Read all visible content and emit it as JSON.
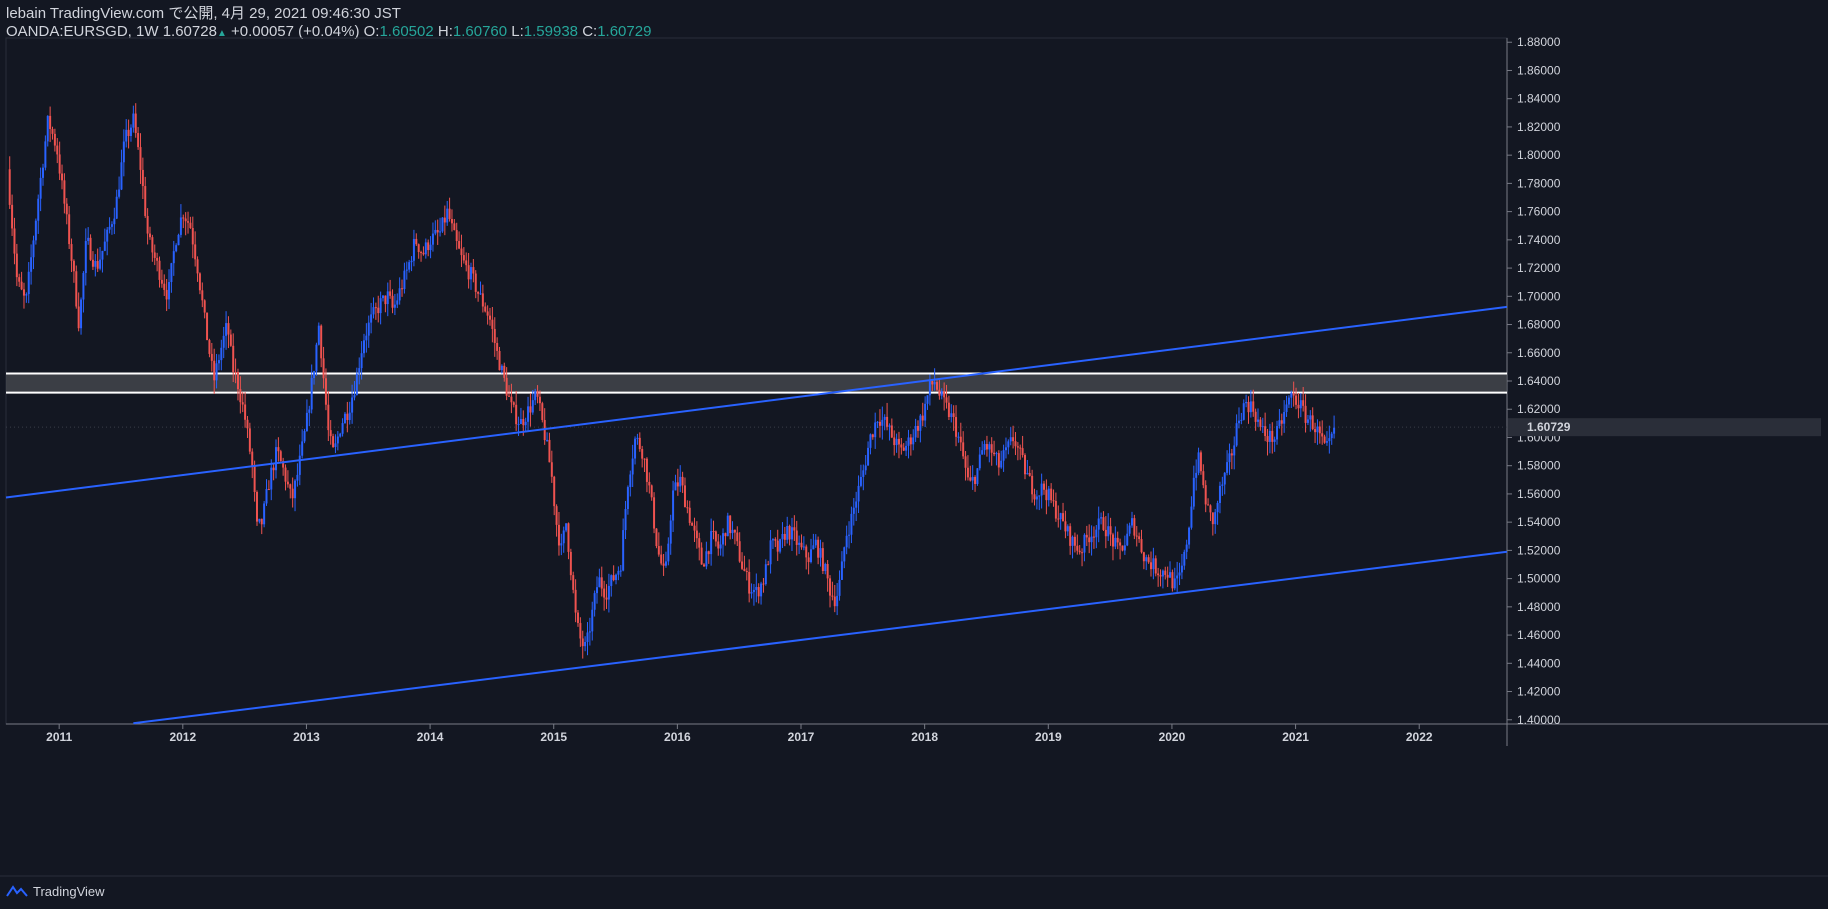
{
  "header": {
    "publisher": "lebain TradingView.com で公開, 4月 29, 2021 09:46:30 JST",
    "symbol": "OANDA:EURSGD, 1W",
    "last": "1.60728",
    "change": "+0.00057 (+0.04%)",
    "o_label": "O:",
    "o_value": "1.60502",
    "h_label": "H:",
    "h_value": "1.60760",
    "l_label": "L:",
    "l_value": "1.59938",
    "c_label": "C:",
    "c_value": "1.60729"
  },
  "footer": {
    "brand": "TradingView"
  },
  "colors": {
    "background": "#131722",
    "up": "#2962ff",
    "down": "#ef5350",
    "trendline": "#2962ff",
    "zone_fill": "#4a4c52",
    "zone_border": "#ffffff",
    "text": "#d1d4dc",
    "ohlc_value": "#26a69a"
  },
  "chart_data": {
    "type": "candlestick",
    "symbol": "OANDA:EURSGD",
    "interval": "1W",
    "x_range": [
      2010.57,
      2022.71
    ],
    "y_range": [
      1.397,
      1.883
    ],
    "y_ticks": [
      "1.40000",
      "1.42000",
      "1.44000",
      "1.46000",
      "1.48000",
      "1.50000",
      "1.52000",
      "1.54000",
      "1.56000",
      "1.58000",
      "1.60000",
      "1.62000",
      "1.64000",
      "1.66000",
      "1.68000",
      "1.70000",
      "1.72000",
      "1.74000",
      "1.76000",
      "1.78000",
      "1.80000",
      "1.82000",
      "1.84000",
      "1.86000",
      "1.88000"
    ],
    "x_ticks": [
      "2011",
      "2012",
      "2013",
      "2014",
      "2015",
      "2016",
      "2017",
      "2018",
      "2019",
      "2020",
      "2021",
      "2022"
    ],
    "last_price_label": "1.60729",
    "last_price": 1.60729,
    "price_path": [
      [
        2010.6,
        1.79
      ],
      [
        2010.68,
        1.71
      ],
      [
        2010.75,
        1.695
      ],
      [
        2010.85,
        1.77
      ],
      [
        2010.93,
        1.825
      ],
      [
        2011.0,
        1.805
      ],
      [
        2011.07,
        1.76
      ],
      [
        2011.13,
        1.72
      ],
      [
        2011.18,
        1.68
      ],
      [
        2011.24,
        1.74
      ],
      [
        2011.32,
        1.72
      ],
      [
        2011.4,
        1.74
      ],
      [
        2011.48,
        1.765
      ],
      [
        2011.55,
        1.81
      ],
      [
        2011.62,
        1.825
      ],
      [
        2011.68,
        1.79
      ],
      [
        2011.74,
        1.74
      ],
      [
        2011.82,
        1.72
      ],
      [
        2011.9,
        1.7
      ],
      [
        2011.96,
        1.74
      ],
      [
        2012.02,
        1.76
      ],
      [
        2012.08,
        1.75
      ],
      [
        2012.14,
        1.72
      ],
      [
        2012.2,
        1.68
      ],
      [
        2012.27,
        1.64
      ],
      [
        2012.32,
        1.66
      ],
      [
        2012.38,
        1.68
      ],
      [
        2012.42,
        1.65
      ],
      [
        2012.46,
        1.64
      ],
      [
        2012.52,
        1.615
      ],
      [
        2012.58,
        1.58
      ],
      [
        2012.62,
        1.535
      ],
      [
        2012.66,
        1.54
      ],
      [
        2012.72,
        1.57
      ],
      [
        2012.78,
        1.59
      ],
      [
        2012.84,
        1.575
      ],
      [
        2012.9,
        1.555
      ],
      [
        2012.95,
        1.575
      ],
      [
        2013.02,
        1.61
      ],
      [
        2013.08,
        1.65
      ],
      [
        2013.12,
        1.68
      ],
      [
        2013.16,
        1.64
      ],
      [
        2013.2,
        1.6
      ],
      [
        2013.24,
        1.588
      ],
      [
        2013.3,
        1.61
      ],
      [
        2013.36,
        1.62
      ],
      [
        2013.42,
        1.64
      ],
      [
        2013.48,
        1.67
      ],
      [
        2013.55,
        1.685
      ],
      [
        2013.62,
        1.695
      ],
      [
        2013.68,
        1.7
      ],
      [
        2013.72,
        1.69
      ],
      [
        2013.78,
        1.705
      ],
      [
        2013.84,
        1.72
      ],
      [
        2013.9,
        1.74
      ],
      [
        2013.96,
        1.73
      ],
      [
        2014.02,
        1.74
      ],
      [
        2014.1,
        1.745
      ],
      [
        2014.16,
        1.76
      ],
      [
        2014.22,
        1.74
      ],
      [
        2014.28,
        1.725
      ],
      [
        2014.35,
        1.715
      ],
      [
        2014.42,
        1.7
      ],
      [
        2014.5,
        1.685
      ],
      [
        2014.56,
        1.66
      ],
      [
        2014.62,
        1.64
      ],
      [
        2014.68,
        1.62
      ],
      [
        2014.75,
        1.61
      ],
      [
        2014.82,
        1.62
      ],
      [
        2014.88,
        1.63
      ],
      [
        2014.94,
        1.605
      ],
      [
        2015.0,
        1.575
      ],
      [
        2015.04,
        1.54
      ],
      [
        2015.08,
        1.52
      ],
      [
        2015.12,
        1.54
      ],
      [
        2015.16,
        1.505
      ],
      [
        2015.2,
        1.47
      ],
      [
        2015.24,
        1.455
      ],
      [
        2015.28,
        1.45
      ],
      [
        2015.32,
        1.47
      ],
      [
        2015.38,
        1.5
      ],
      [
        2015.44,
        1.49
      ],
      [
        2015.5,
        1.5
      ],
      [
        2015.56,
        1.51
      ],
      [
        2015.62,
        1.57
      ],
      [
        2015.68,
        1.6
      ],
      [
        2015.74,
        1.59
      ],
      [
        2015.8,
        1.56
      ],
      [
        2015.86,
        1.52
      ],
      [
        2015.92,
        1.5
      ],
      [
        2015.98,
        1.56
      ],
      [
        2016.04,
        1.57
      ],
      [
        2016.1,
        1.55
      ],
      [
        2016.16,
        1.53
      ],
      [
        2016.22,
        1.51
      ],
      [
        2016.3,
        1.53
      ],
      [
        2016.36,
        1.52
      ],
      [
        2016.42,
        1.54
      ],
      [
        2016.48,
        1.53
      ],
      [
        2016.54,
        1.51
      ],
      [
        2016.6,
        1.495
      ],
      [
        2016.66,
        1.49
      ],
      [
        2016.72,
        1.5
      ],
      [
        2016.78,
        1.525
      ],
      [
        2016.84,
        1.52
      ],
      [
        2016.9,
        1.535
      ],
      [
        2016.96,
        1.53
      ],
      [
        2017.02,
        1.52
      ],
      [
        2017.08,
        1.515
      ],
      [
        2017.14,
        1.525
      ],
      [
        2017.2,
        1.51
      ],
      [
        2017.26,
        1.49
      ],
      [
        2017.3,
        1.485
      ],
      [
        2017.34,
        1.5
      ],
      [
        2017.38,
        1.53
      ],
      [
        2017.42,
        1.54
      ],
      [
        2017.46,
        1.555
      ],
      [
        2017.52,
        1.575
      ],
      [
        2017.58,
        1.6
      ],
      [
        2017.64,
        1.615
      ],
      [
        2017.7,
        1.61
      ],
      [
        2017.76,
        1.6
      ],
      [
        2017.82,
        1.59
      ],
      [
        2017.88,
        1.595
      ],
      [
        2017.94,
        1.605
      ],
      [
        2018.0,
        1.615
      ],
      [
        2018.06,
        1.635
      ],
      [
        2018.1,
        1.64
      ],
      [
        2018.14,
        1.63
      ],
      [
        2018.2,
        1.62
      ],
      [
        2018.26,
        1.61
      ],
      [
        2018.32,
        1.59
      ],
      [
        2018.38,
        1.565
      ],
      [
        2018.44,
        1.575
      ],
      [
        2018.5,
        1.595
      ],
      [
        2018.56,
        1.59
      ],
      [
        2018.62,
        1.58
      ],
      [
        2018.68,
        1.59
      ],
      [
        2018.74,
        1.6
      ],
      [
        2018.8,
        1.585
      ],
      [
        2018.86,
        1.57
      ],
      [
        2018.92,
        1.56
      ],
      [
        2018.98,
        1.565
      ],
      [
        2019.04,
        1.555
      ],
      [
        2019.1,
        1.545
      ],
      [
        2019.16,
        1.535
      ],
      [
        2019.22,
        1.525
      ],
      [
        2019.28,
        1.52
      ],
      [
        2019.34,
        1.53
      ],
      [
        2019.4,
        1.535
      ],
      [
        2019.46,
        1.54
      ],
      [
        2019.52,
        1.53
      ],
      [
        2019.58,
        1.52
      ],
      [
        2019.64,
        1.525
      ],
      [
        2019.7,
        1.54
      ],
      [
        2019.74,
        1.53
      ],
      [
        2019.8,
        1.515
      ],
      [
        2019.86,
        1.51
      ],
      [
        2019.92,
        1.505
      ],
      [
        2019.98,
        1.505
      ],
      [
        2020.04,
        1.495
      ],
      [
        2020.08,
        1.5
      ],
      [
        2020.12,
        1.515
      ],
      [
        2020.16,
        1.54
      ],
      [
        2020.2,
        1.575
      ],
      [
        2020.24,
        1.585
      ],
      [
        2020.28,
        1.56
      ],
      [
        2020.32,
        1.545
      ],
      [
        2020.36,
        1.54
      ],
      [
        2020.4,
        1.56
      ],
      [
        2020.46,
        1.575
      ],
      [
        2020.52,
        1.595
      ],
      [
        2020.56,
        1.615
      ],
      [
        2020.62,
        1.625
      ],
      [
        2020.68,
        1.62
      ],
      [
        2020.74,
        1.605
      ],
      [
        2020.8,
        1.6
      ],
      [
        2020.86,
        1.6
      ],
      [
        2020.92,
        1.615
      ],
      [
        2020.98,
        1.63
      ],
      [
        2021.04,
        1.625
      ],
      [
        2021.1,
        1.615
      ],
      [
        2021.16,
        1.61
      ],
      [
        2021.22,
        1.6
      ],
      [
        2021.26,
        1.59
      ],
      [
        2021.3,
        1.595
      ],
      [
        2021.33,
        1.605
      ]
    ],
    "lines": [
      {
        "name": "upper-trendline",
        "x1": 2010.57,
        "y1": 1.5575,
        "x2": 2022.71,
        "y2": 1.6925
      },
      {
        "name": "lower-trendline",
        "x1": 2011.6,
        "y1": 1.3975,
        "x2": 2022.71,
        "y2": 1.519
      }
    ],
    "zone": {
      "y_top": 1.6453,
      "y_bottom": 1.6318
    }
  }
}
